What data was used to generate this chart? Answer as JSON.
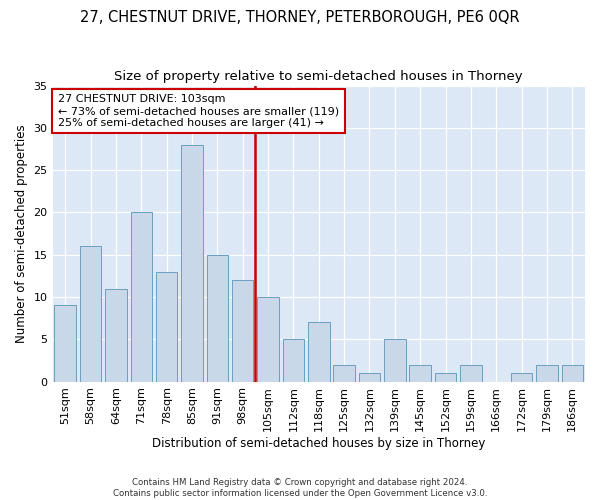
{
  "title": "27, CHESTNUT DRIVE, THORNEY, PETERBOROUGH, PE6 0QR",
  "subtitle": "Size of property relative to semi-detached houses in Thorney",
  "xlabel": "Distribution of semi-detached houses by size in Thorney",
  "ylabel": "Number of semi-detached properties",
  "categories": [
    "51sqm",
    "58sqm",
    "64sqm",
    "71sqm",
    "78sqm",
    "85sqm",
    "91sqm",
    "98sqm",
    "105sqm",
    "112sqm",
    "118sqm",
    "125sqm",
    "132sqm",
    "139sqm",
    "145sqm",
    "152sqm",
    "159sqm",
    "166sqm",
    "172sqm",
    "179sqm",
    "186sqm"
  ],
  "values": [
    9,
    16,
    11,
    20,
    13,
    28,
    15,
    12,
    10,
    5,
    7,
    2,
    1,
    5,
    2,
    1,
    2,
    0,
    1,
    2,
    2
  ],
  "bar_color": "#c8d8e8",
  "bar_edge_color": "#6a9fc0",
  "annotation_text": "27 CHESTNUT DRIVE: 103sqm\n← 73% of semi-detached houses are smaller (119)\n25% of semi-detached houses are larger (41) →",
  "annotation_box_color": "#ffffff",
  "annotation_box_edge": "#cc0000",
  "vline_color": "#cc0000",
  "ylim": [
    0,
    35
  ],
  "yticks": [
    0,
    5,
    10,
    15,
    20,
    25,
    30,
    35
  ],
  "bg_color": "#dce8f5",
  "footer": "Contains HM Land Registry data © Crown copyright and database right 2024.\nContains public sector information licensed under the Open Government Licence v3.0.",
  "title_fontsize": 10.5,
  "subtitle_fontsize": 9.5,
  "xlabel_fontsize": 8.5,
  "ylabel_fontsize": 8.5
}
